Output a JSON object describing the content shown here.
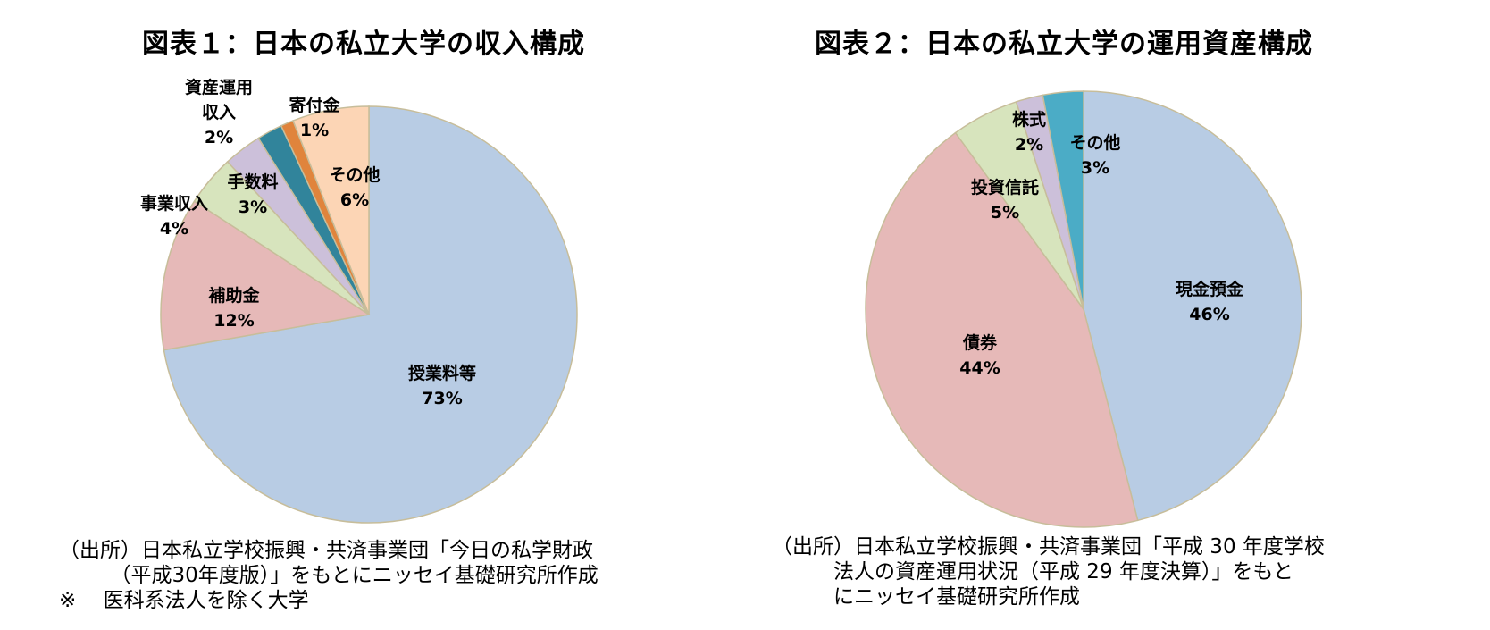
{
  "chart_data": [
    {
      "type": "pie",
      "title": "図表１：日本の私立大学の収入構成",
      "colors": [
        "#b8cce4",
        "#e6b9b8",
        "#d7e4bd",
        "#ccc0da",
        "#31849b",
        "#e0843c",
        "#fcd5b5"
      ],
      "slices": [
        {
          "label": "授業料等",
          "label_lines": [
            "授業料等"
          ],
          "value": 73,
          "value_label": "73%"
        },
        {
          "label": "補助金",
          "label_lines": [
            "補助金"
          ],
          "value": 12,
          "value_label": "12%"
        },
        {
          "label": "事業収入",
          "label_lines": [
            "事業収入"
          ],
          "value": 4,
          "value_label": "4%"
        },
        {
          "label": "手数料",
          "label_lines": [
            "手数料"
          ],
          "value": 3,
          "value_label": "3%"
        },
        {
          "label": "資産運用収入",
          "label_lines": [
            "資産運用",
            "収入"
          ],
          "value": 2,
          "value_label": "2%"
        },
        {
          "label": "寄付金",
          "label_lines": [
            "寄付金"
          ],
          "value": 1,
          "value_label": "1%"
        },
        {
          "label": "その他",
          "label_lines": [
            "その他"
          ],
          "value": 6,
          "value_label": "6%"
        }
      ],
      "notes": [
        "（出所）日本私立学校振興・共済事業団「今日の私学財政",
        "　　　（平成30年度版）」をもとにニッセイ基礎研究所作成",
        "※　 医科系法人を除く大学"
      ]
    },
    {
      "type": "pie",
      "title": "図表２：日本の私立大学の運用資産構成",
      "colors": [
        "#b8cce4",
        "#e6b9b8",
        "#d7e4bd",
        "#ccc0da",
        "#4bacc6"
      ],
      "slices": [
        {
          "label": "現金預金",
          "label_lines": [
            "現金預金"
          ],
          "value": 46,
          "value_label": "46%"
        },
        {
          "label": "債券",
          "label_lines": [
            "債券"
          ],
          "value": 44,
          "value_label": "44%"
        },
        {
          "label": "投資信託",
          "label_lines": [
            "投資信託"
          ],
          "value": 5,
          "value_label": "5%"
        },
        {
          "label": "株式",
          "label_lines": [
            "株式"
          ],
          "value": 2,
          "value_label": "2%"
        },
        {
          "label": "その他",
          "label_lines": [
            "その他"
          ],
          "value": 3,
          "value_label": "3%"
        }
      ],
      "notes": [
        "（出所）日本私立学校振興・共済事業団「平成 30 年度学校",
        "　　　法人の資産運用状況（平成 29 年度決算）」をもと",
        "　　　にニッセイ基礎研究所作成"
      ]
    }
  ]
}
